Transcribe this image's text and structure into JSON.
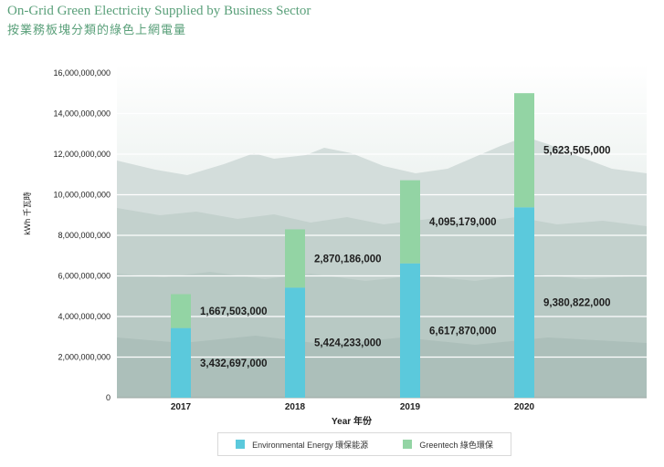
{
  "title_en": "On-Grid Green Electricity Supplied by Business Sector",
  "title_zh": "按業務板塊分類的綠色上網電量",
  "colors": {
    "env": "#5bc9dc",
    "green": "#93d4a4",
    "title": "#5aa07a"
  },
  "chart_data": {
    "type": "bar",
    "stacked": true,
    "categories": [
      "2017",
      "2018",
      "2019",
      "2020"
    ],
    "series": [
      {
        "name": "Environmental Energy 環保能源",
        "values": [
          3432697000,
          5424233000,
          6617870000,
          9380822000
        ],
        "labels": [
          "3,432,697,000",
          "5,424,233,000",
          "6,617,870,000",
          "9,380,822,000"
        ]
      },
      {
        "name": "Greentech 綠色環保",
        "values": [
          1667503000,
          2870186000,
          4095179000,
          5623505000
        ],
        "labels": [
          "1,667,503,000",
          "2,870,186,000",
          "4,095,179,000",
          "5,623,505,000"
        ]
      }
    ],
    "xlabel": "Year 年份",
    "ylabel": "kWh 千瓦時",
    "ylim": [
      0,
      16000000000
    ],
    "yticks": [
      0,
      2000000000,
      4000000000,
      6000000000,
      8000000000,
      10000000000,
      12000000000,
      14000000000,
      16000000000
    ],
    "ytick_labels": [
      "0",
      "2,000,000,000",
      "4,000,000,000",
      "6,000,000,000",
      "8,000,000,000",
      "10,000,000,000",
      "12,000,000,000",
      "14,000,000,000",
      "16,000,000,000"
    ],
    "grid": true,
    "legend_position": "bottom"
  }
}
